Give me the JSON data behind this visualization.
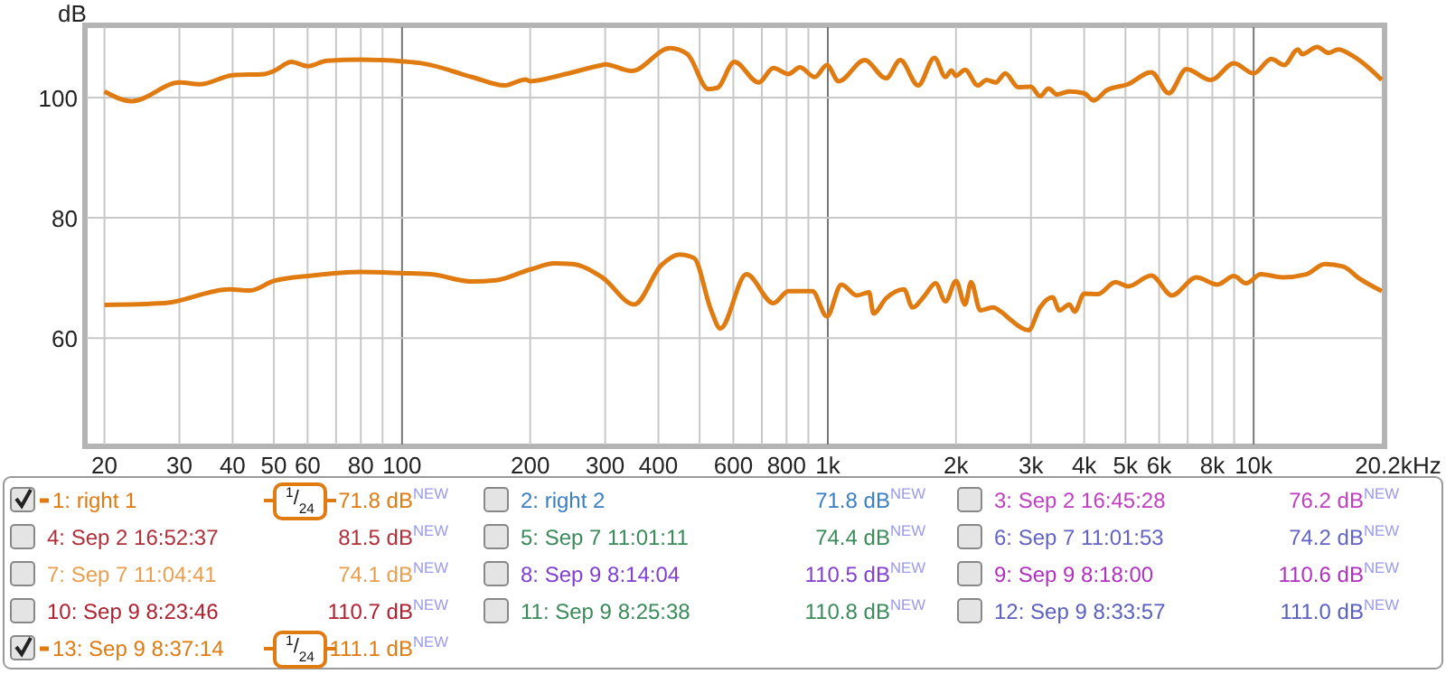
{
  "chart_data": {
    "type": "line",
    "ylabel": "dB",
    "log": "x",
    "grid": true,
    "legend": "bottom",
    "marker": "none",
    "line_style": "solid",
    "xlim": [
      18,
      20300
    ],
    "ylim": [
      42,
      112
    ],
    "xticks": [
      20,
      30,
      40,
      50,
      60,
      {
        "value": 70,
        "label": null
      },
      80,
      {
        "value": 90,
        "label": null
      },
      100,
      200,
      300,
      400,
      {
        "value": 500,
        "label": null
      },
      600,
      {
        "value": 700,
        "label": null
      },
      800,
      {
        "value": 900,
        "label": null
      },
      {
        "value": 1000,
        "label": "1k"
      },
      {
        "value": 2000,
        "label": "2k"
      },
      {
        "value": 3000,
        "label": "3k"
      },
      {
        "value": 4000,
        "label": "4k"
      },
      {
        "value": 5000,
        "label": "5k"
      },
      {
        "value": 6000,
        "label": "6k"
      },
      {
        "value": 7000,
        "label": null
      },
      {
        "value": 8000,
        "label": "8k"
      },
      {
        "value": 9000,
        "label": null
      },
      {
        "value": 10000,
        "label": "10k"
      },
      {
        "value": 20200,
        "label": "20.2k"
      }
    ],
    "xlabel": "Hz",
    "yticks": [
      60,
      80,
      100
    ],
    "series": [
      {
        "name": "1: right 1",
        "color": "#e07b12",
        "x": [
          20,
          27.7,
          39.3,
          44,
          50,
          61.5,
          80,
          100,
          117,
          146,
          166,
          200,
          228,
          251,
          295,
          351,
          406,
          448,
          485,
          532,
          559,
          644,
          745,
          808,
          920,
          995,
          1076,
          1170,
          1250,
          1280,
          1370,
          1510,
          1580,
          1690,
          1790,
          1890,
          2000,
          2100,
          2170,
          2280,
          2440,
          2560,
          2680,
          2960,
          3150,
          3370,
          3500,
          3690,
          3800,
          4000,
          4300,
          4740,
          5070,
          5750,
          6430,
          7340,
          8220,
          8990,
          9600,
          10400,
          11700,
          13300,
          14700,
          16200,
          17800,
          20000
        ],
        "values": [
          65.5,
          65.8,
          68.1,
          67.9,
          69.5,
          70.4,
          71,
          70.8,
          70.6,
          69.4,
          69.6,
          71.4,
          72.4,
          72.3,
          70.1,
          65.6,
          72.1,
          73.9,
          73.3,
          64.6,
          61.6,
          70.6,
          65.8,
          67.8,
          67.8,
          63.6,
          68.9,
          67.1,
          67.6,
          64.1,
          66.6,
          68.1,
          65.1,
          67.1,
          69.1,
          66.1,
          69.5,
          65.6,
          69.3,
          64.6,
          65.1,
          64.3,
          63.1,
          61.3,
          65.1,
          66.8,
          64.6,
          65.6,
          64.4,
          67.4,
          67.3,
          69.3,
          68.6,
          70.4,
          67.1,
          70.1,
          68.9,
          70.3,
          69.1,
          70.6,
          70.1,
          70.6,
          72.3,
          71.9,
          69.8,
          67.8
        ]
      },
      {
        "name": "13: Sep 9 8:37:14",
        "color": "#e07b12",
        "x": [
          20,
          23.2,
          30,
          33.5,
          40,
          47.6,
          50,
          55,
          60,
          66.6,
          80,
          90,
          100,
          113,
          146,
          174,
          195,
          200,
          236,
          295,
          300,
          346,
          426,
          468,
          524,
          550,
          603,
          688,
          745,
          808,
          860,
          932,
          995,
          1060,
          1220,
          1370,
          1480,
          1630,
          1780,
          1890,
          1950,
          2000,
          2100,
          2250,
          2360,
          2480,
          2610,
          2800,
          3000,
          3150,
          3300,
          3450,
          3690,
          4000,
          4210,
          4520,
          5070,
          5750,
          6320,
          6950,
          7940,
          8990,
          10000,
          11000,
          11800,
          12700,
          13000,
          14100,
          15000,
          15800,
          17100,
          18800,
          20000
        ],
        "values": [
          101,
          99.4,
          102.5,
          102.2,
          103.7,
          103.9,
          104.4,
          105.9,
          105.2,
          106.1,
          106.3,
          106.2,
          106,
          105.6,
          103.4,
          102,
          103,
          102.7,
          103.7,
          105.4,
          105.5,
          104.4,
          108.2,
          107.2,
          101.4,
          101.6,
          105.9,
          102.5,
          104.9,
          103.9,
          105,
          103.4,
          105.4,
          102.7,
          106.2,
          103.2,
          106.2,
          102,
          106.6,
          103.4,
          104.5,
          103.6,
          104.6,
          102,
          102.9,
          102.5,
          104,
          101.7,
          101.8,
          100.2,
          101.5,
          100.5,
          101,
          100.7,
          99.5,
          101.2,
          102.2,
          104.2,
          100.7,
          104.7,
          102.9,
          105.7,
          104,
          106.4,
          105.4,
          108,
          107.2,
          108.4,
          107.4,
          108,
          106.9,
          104.7,
          102.9
        ]
      }
    ],
    "annotations": [
      "$^{1}$/$_{24}$",
      "71.8 dB$^{NEW}$",
      "2: right 2",
      "71.8 dB$^{NEW}$",
      "3: Sep 2 16:45:28",
      "76.2 dB$^{NEW}$",
      "4: Sep 2 16:52:37",
      "81.5 dB$^{NEW}$",
      "5: Sep 7 11:01:11",
      "74.4 dB$^{NEW}$",
      "6: Sep 7 11:01:53",
      "74.2 dB$^{NEW}$",
      "7: Sep 7 11:04:41",
      "74.1 dB$^{NEW}$",
      "8: Sep 9 8:14:04",
      "110.5 dB$^{NEW}$",
      "9: Sep 9 8:18:00",
      "110.6 dB$^{NEW}$",
      "10: Sep 9 8:23:46",
      "110.7 dB$^{NEW}$",
      "11: Sep 9 8:25:38",
      "110.8 dB$^{NEW}$",
      "12: Sep 9 8:33:57",
      "111.0 dB$^{NEW}$",
      "$^{1}$/$_{24}$",
      "111.1 dB$^{NEW}$"
    ]
  }
}
